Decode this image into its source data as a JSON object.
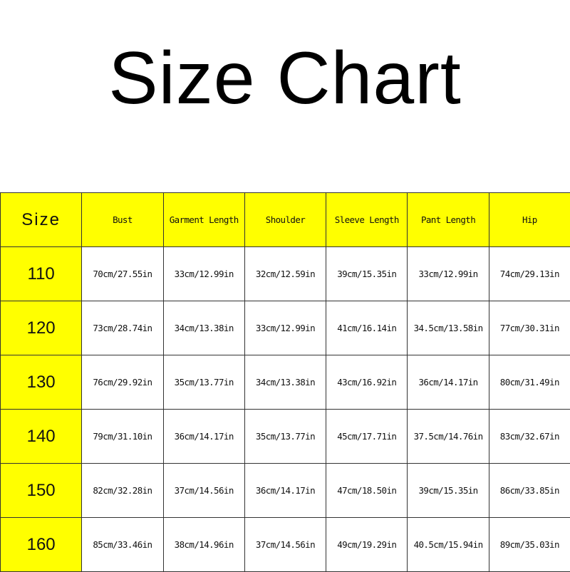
{
  "title": "Size Chart",
  "colors": {
    "header_bg": "#ffff00",
    "size_column_bg": "#ffff00",
    "cell_bg": "#ffffff"
  },
  "table": {
    "headers": [
      "Size",
      "Bust",
      "Garment Length",
      "Shoulder",
      "Sleeve Length",
      "Pant Length",
      "Hip"
    ],
    "rows": [
      [
        "110",
        "70cm/27.55in",
        "33cm/12.99in",
        "32cm/12.59in",
        "39cm/15.35in",
        "33cm/12.99in",
        "74cm/29.13in"
      ],
      [
        "120",
        "73cm/28.74in",
        "34cm/13.38in",
        "33cm/12.99in",
        "41cm/16.14in",
        "34.5cm/13.58in",
        "77cm/30.31in"
      ],
      [
        "130",
        "76cm/29.92in",
        "35cm/13.77in",
        "34cm/13.38in",
        "43cm/16.92in",
        "36cm/14.17in",
        "80cm/31.49in"
      ],
      [
        "140",
        "79cm/31.10in",
        "36cm/14.17in",
        "35cm/13.77in",
        "45cm/17.71in",
        "37.5cm/14.76in",
        "83cm/32.67in"
      ],
      [
        "150",
        "82cm/32.28in",
        "37cm/14.56in",
        "36cm/14.17in",
        "47cm/18.50in",
        "39cm/15.35in",
        "86cm/33.85in"
      ],
      [
        "160",
        "85cm/33.46in",
        "38cm/14.96in",
        "37cm/14.56in",
        "49cm/19.29in",
        "40.5cm/15.94in",
        "89cm/35.03in"
      ]
    ]
  }
}
